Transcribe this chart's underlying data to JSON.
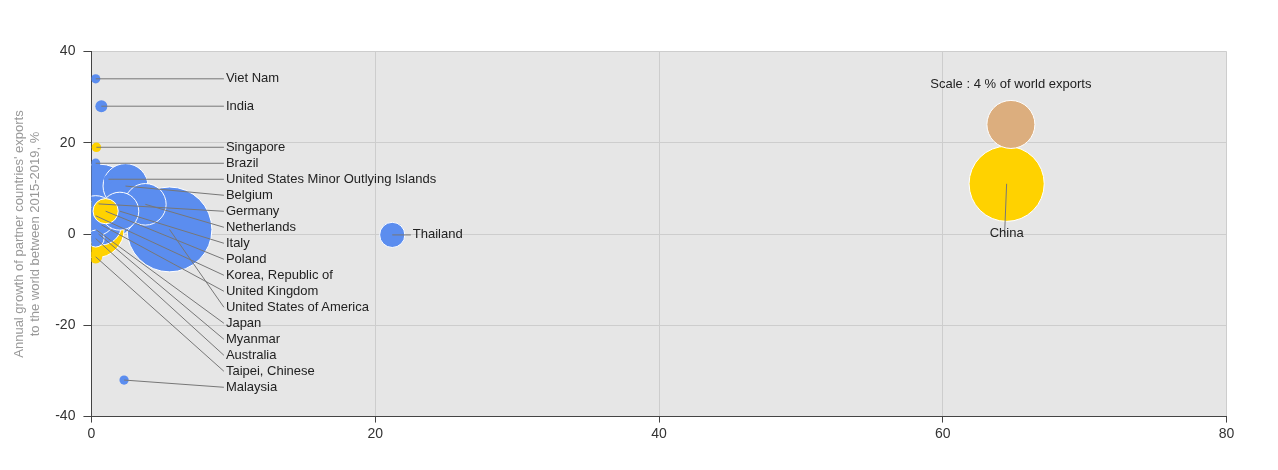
{
  "chart_data": {
    "type": "bubble",
    "ylabel": "Annual growth of partner countries' exports\nto the world between 2015-2019, %",
    "xlim": [
      0,
      80
    ],
    "xticks": [
      0,
      20,
      40,
      60,
      80
    ],
    "ylim": [
      -40,
      40
    ],
    "yticks": [
      -40,
      -20,
      0,
      20,
      40
    ],
    "grid": true,
    "legend": false,
    "size_legend": [
      {
        "value": 4,
        "label": "Scale : 4 % of world exports"
      }
    ],
    "series": [
      {
        "color": "#5b8def",
        "x": [
          0.3,
          0.7,
          0.3,
          1.2,
          2.4,
          0.5,
          3.8,
          2.0,
          0.3,
          0.7,
          5.5,
          0.5,
          0.3,
          21.2,
          2.3
        ],
        "values": [
          34,
          28,
          15.5,
          12,
          10.5,
          6.6,
          6.5,
          5,
          4,
          2,
          1,
          0,
          -1,
          -0.2,
          -32
        ],
        "sizes": [
          0.15,
          0.25,
          0.15,
          0.15,
          3.5,
          11,
          3,
          2.5,
          2.8,
          2.8,
          12.5,
          0.15,
          0.5,
          1.1,
          0.15
        ]
      },
      {
        "color": "#ffd200",
        "x": [
          0.35,
          1.0,
          0.3,
          0.3,
          64.5
        ],
        "values": [
          19,
          5,
          1,
          -5,
          11
        ],
        "sizes": [
          0.16,
          1.1,
          5.6,
          0.3,
          9.8
        ]
      }
    ],
    "annotations": [
      {
        "text": "Viet Nam",
        "x": 0.3,
        "y": 34
      },
      {
        "text": "India",
        "x": 0.7,
        "y": 28
      },
      {
        "text": "Singapore",
        "x": 0.35,
        "y": 19
      },
      {
        "text": "Brazil",
        "x": 0.3,
        "y": 15.5
      },
      {
        "text": "United States Minor Outlying Islands",
        "x": 1.2,
        "y": 12
      },
      {
        "text": "Belgium",
        "x": 2.4,
        "y": 10.5
      },
      {
        "text": "Germany",
        "x": 0.5,
        "y": 6.6
      },
      {
        "text": "Netherlands",
        "x": 3.8,
        "y": 6.5
      },
      {
        "text": "Italy",
        "x": 2.0,
        "y": 5
      },
      {
        "text": "United States of America",
        "x": 5.5,
        "y": 1
      },
      {
        "text": "Poland",
        "x": 1.0,
        "y": 5
      },
      {
        "text": "Korea, Republic of",
        "x": 0.3,
        "y": 4
      },
      {
        "text": "Myanmar",
        "x": 0.5,
        "y": 0
      },
      {
        "text": "United Kingdom",
        "x": 0.7,
        "y": 2
      },
      {
        "text": "Japan",
        "x": 0.3,
        "y": 1
      },
      {
        "text": "Taipei, Chinese",
        "x": 0.3,
        "y": -5
      },
      {
        "text": "Australia",
        "x": 0.3,
        "y": -1
      },
      {
        "text": "Thailand",
        "x": 21.2,
        "y": -0.2
      },
      {
        "text": "Malaysia",
        "x": 2.3,
        "y": -32
      },
      {
        "text": "China",
        "x": 64.5,
        "y": 11
      }
    ]
  }
}
